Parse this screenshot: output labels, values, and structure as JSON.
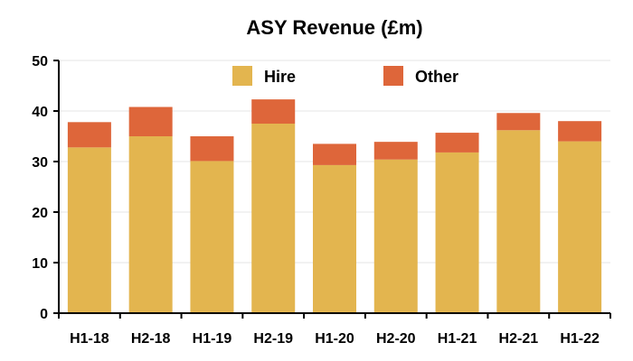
{
  "chart_data": {
    "type": "bar",
    "stacked": true,
    "title": "ASY Revenue (£m)",
    "xlabel": "",
    "ylabel": "",
    "categories": [
      "H1-18",
      "H2-18",
      "H1-19",
      "H2-19",
      "H1-20",
      "H2-20",
      "H1-21",
      "H2-21",
      "H1-22"
    ],
    "series": [
      {
        "name": "Hire",
        "color": "#E3B54F",
        "values": [
          32.8,
          35.0,
          30.1,
          37.5,
          29.3,
          30.4,
          31.8,
          36.2,
          34.0
        ]
      },
      {
        "name": "Other",
        "color": "#DE663A",
        "values": [
          5.0,
          5.8,
          4.9,
          4.8,
          4.2,
          3.5,
          3.9,
          3.4,
          4.0
        ]
      }
    ],
    "ylim": [
      0,
      50
    ],
    "yticks": [
      "0",
      "10",
      "20",
      "30",
      "40",
      "50"
    ],
    "grid": true,
    "legend_position": "top"
  }
}
